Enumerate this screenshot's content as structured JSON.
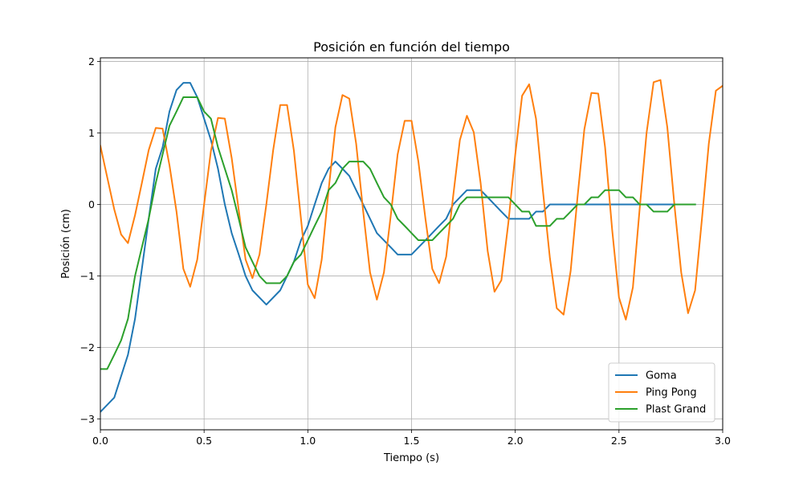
{
  "chart_data": {
    "type": "line",
    "title": "Posición en función del tiempo",
    "xlabel": "Tiempo (s)",
    "ylabel": "Posición (cm)",
    "xlim": [
      0,
      3
    ],
    "ylim": [
      -3.15,
      2.05
    ],
    "xticks": [
      0,
      0.5,
      1.0,
      1.5,
      2.0,
      2.5,
      3.0
    ],
    "xtick_labels": [
      "0.0",
      "0.5",
      "1.0",
      "1.5",
      "2.0",
      "2.5",
      "3.0"
    ],
    "yticks": [
      -3,
      -2,
      -1,
      0,
      1,
      2
    ],
    "ytick_labels": [
      "−3",
      "−2",
      "−1",
      "0",
      "1",
      "2"
    ],
    "grid": true,
    "legend_position": "lower-right",
    "series": [
      {
        "name": "Goma",
        "color": "#1f77b4",
        "points": [
          [
            0.0,
            -2.9
          ],
          [
            0.067,
            -2.7
          ],
          [
            0.133,
            -2.1
          ],
          [
            0.167,
            -1.6
          ],
          [
            0.2,
            -0.9
          ],
          [
            0.233,
            -0.2
          ],
          [
            0.267,
            0.5
          ],
          [
            0.3,
            0.8
          ],
          [
            0.333,
            1.3
          ],
          [
            0.367,
            1.6
          ],
          [
            0.4,
            1.7
          ],
          [
            0.433,
            1.7
          ],
          [
            0.467,
            1.5
          ],
          [
            0.5,
            1.2
          ],
          [
            0.533,
            0.9
          ],
          [
            0.567,
            0.5
          ],
          [
            0.6,
            0.0
          ],
          [
            0.633,
            -0.4
          ],
          [
            0.667,
            -0.7
          ],
          [
            0.7,
            -1.0
          ],
          [
            0.733,
            -1.2
          ],
          [
            0.8,
            -1.4
          ],
          [
            0.867,
            -1.2
          ],
          [
            0.9,
            -1.0
          ],
          [
            0.933,
            -0.8
          ],
          [
            0.967,
            -0.5
          ],
          [
            1.0,
            -0.3
          ],
          [
            1.033,
            0.0
          ],
          [
            1.067,
            0.3
          ],
          [
            1.1,
            0.5
          ],
          [
            1.133,
            0.6
          ],
          [
            1.167,
            0.5
          ],
          [
            1.2,
            0.4
          ],
          [
            1.233,
            0.2
          ],
          [
            1.267,
            0.0
          ],
          [
            1.3,
            -0.2
          ],
          [
            1.333,
            -0.4
          ],
          [
            1.4,
            -0.6
          ],
          [
            1.433,
            -0.7
          ],
          [
            1.5,
            -0.7
          ],
          [
            1.567,
            -0.5
          ],
          [
            1.633,
            -0.3
          ],
          [
            1.667,
            -0.2
          ],
          [
            1.7,
            0.0
          ],
          [
            1.767,
            0.2
          ],
          [
            1.833,
            0.2
          ],
          [
            1.867,
            0.1
          ],
          [
            1.933,
            -0.1
          ],
          [
            1.967,
            -0.2
          ],
          [
            2.067,
            -0.2
          ],
          [
            2.1,
            -0.1
          ],
          [
            2.133,
            -0.1
          ],
          [
            2.167,
            0.0
          ],
          [
            2.867,
            0.0
          ]
        ]
      },
      {
        "name": "Ping Pong",
        "color": "#ff7f0e",
        "points": [
          [
            0.0,
            0.82
          ],
          [
            0.033,
            0.38
          ],
          [
            0.067,
            -0.07
          ],
          [
            0.1,
            -0.42
          ],
          [
            0.133,
            -0.54
          ],
          [
            0.167,
            -0.15
          ],
          [
            0.2,
            0.3
          ],
          [
            0.233,
            0.76
          ],
          [
            0.267,
            1.07
          ],
          [
            0.3,
            1.06
          ],
          [
            0.333,
            0.55
          ],
          [
            0.367,
            -0.1
          ],
          [
            0.4,
            -0.9
          ],
          [
            0.433,
            -1.15
          ],
          [
            0.467,
            -0.77
          ],
          [
            0.5,
            0.0
          ],
          [
            0.533,
            0.75
          ],
          [
            0.567,
            1.21
          ],
          [
            0.6,
            1.2
          ],
          [
            0.633,
            0.65
          ],
          [
            0.667,
            -0.08
          ],
          [
            0.7,
            -0.77
          ],
          [
            0.733,
            -1.03
          ],
          [
            0.767,
            -0.7
          ],
          [
            0.8,
            0.0
          ],
          [
            0.833,
            0.76
          ],
          [
            0.867,
            1.39
          ],
          [
            0.9,
            1.39
          ],
          [
            0.933,
            0.75
          ],
          [
            0.967,
            -0.2
          ],
          [
            1.0,
            -1.12
          ],
          [
            1.033,
            -1.31
          ],
          [
            1.067,
            -0.77
          ],
          [
            1.1,
            0.2
          ],
          [
            1.133,
            1.08
          ],
          [
            1.167,
            1.53
          ],
          [
            1.2,
            1.48
          ],
          [
            1.233,
            0.85
          ],
          [
            1.267,
            -0.1
          ],
          [
            1.3,
            -0.95
          ],
          [
            1.333,
            -1.33
          ],
          [
            1.367,
            -0.95
          ],
          [
            1.4,
            -0.15
          ],
          [
            1.433,
            0.7
          ],
          [
            1.467,
            1.17
          ],
          [
            1.5,
            1.17
          ],
          [
            1.533,
            0.6
          ],
          [
            1.567,
            -0.2
          ],
          [
            1.6,
            -0.9
          ],
          [
            1.633,
            -1.1
          ],
          [
            1.667,
            -0.73
          ],
          [
            1.7,
            0.1
          ],
          [
            1.733,
            0.9
          ],
          [
            1.767,
            1.24
          ],
          [
            1.8,
            1.01
          ],
          [
            1.833,
            0.3
          ],
          [
            1.867,
            -0.65
          ],
          [
            1.9,
            -1.22
          ],
          [
            1.933,
            -1.06
          ],
          [
            1.967,
            -0.25
          ],
          [
            2.0,
            0.7
          ],
          [
            2.033,
            1.52
          ],
          [
            2.067,
            1.68
          ],
          [
            2.1,
            1.2
          ],
          [
            2.133,
            0.2
          ],
          [
            2.167,
            -0.75
          ],
          [
            2.2,
            -1.45
          ],
          [
            2.233,
            -1.54
          ],
          [
            2.267,
            -0.93
          ],
          [
            2.3,
            0.1
          ],
          [
            2.333,
            1.05
          ],
          [
            2.367,
            1.56
          ],
          [
            2.4,
            1.55
          ],
          [
            2.433,
            0.8
          ],
          [
            2.467,
            -0.35
          ],
          [
            2.5,
            -1.3
          ],
          [
            2.533,
            -1.61
          ],
          [
            2.567,
            -1.16
          ],
          [
            2.6,
            -0.05
          ],
          [
            2.633,
            1.0
          ],
          [
            2.667,
            1.71
          ],
          [
            2.7,
            1.74
          ],
          [
            2.733,
            1.08
          ],
          [
            2.767,
            0.0
          ],
          [
            2.8,
            -0.95
          ],
          [
            2.833,
            -1.52
          ],
          [
            2.867,
            -1.2
          ],
          [
            2.9,
            -0.2
          ],
          [
            2.933,
            0.85
          ],
          [
            2.967,
            1.59
          ],
          [
            3.0,
            1.66
          ]
        ]
      },
      {
        "name": "Plast Grand",
        "color": "#2ca02c",
        "points": [
          [
            0.0,
            -2.3
          ],
          [
            0.033,
            -2.3
          ],
          [
            0.067,
            -2.1
          ],
          [
            0.1,
            -1.9
          ],
          [
            0.133,
            -1.6
          ],
          [
            0.167,
            -1.0
          ],
          [
            0.2,
            -0.6
          ],
          [
            0.233,
            -0.2
          ],
          [
            0.267,
            0.3
          ],
          [
            0.3,
            0.7
          ],
          [
            0.333,
            1.1
          ],
          [
            0.367,
            1.3
          ],
          [
            0.4,
            1.5
          ],
          [
            0.433,
            1.5
          ],
          [
            0.467,
            1.5
          ],
          [
            0.5,
            1.3
          ],
          [
            0.533,
            1.2
          ],
          [
            0.567,
            0.8
          ],
          [
            0.6,
            0.5
          ],
          [
            0.633,
            0.2
          ],
          [
            0.667,
            -0.2
          ],
          [
            0.7,
            -0.6
          ],
          [
            0.733,
            -0.8
          ],
          [
            0.767,
            -1.0
          ],
          [
            0.8,
            -1.1
          ],
          [
            0.867,
            -1.1
          ],
          [
            0.9,
            -1.0
          ],
          [
            0.933,
            -0.8
          ],
          [
            0.967,
            -0.7
          ],
          [
            1.0,
            -0.5
          ],
          [
            1.033,
            -0.3
          ],
          [
            1.067,
            -0.1
          ],
          [
            1.1,
            0.2
          ],
          [
            1.133,
            0.3
          ],
          [
            1.167,
            0.5
          ],
          [
            1.2,
            0.6
          ],
          [
            1.267,
            0.6
          ],
          [
            1.3,
            0.5
          ],
          [
            1.333,
            0.3
          ],
          [
            1.367,
            0.1
          ],
          [
            1.4,
            0.0
          ],
          [
            1.433,
            -0.2
          ],
          [
            1.467,
            -0.3
          ],
          [
            1.5,
            -0.4
          ],
          [
            1.533,
            -0.5
          ],
          [
            1.6,
            -0.5
          ],
          [
            1.633,
            -0.4
          ],
          [
            1.667,
            -0.3
          ],
          [
            1.7,
            -0.2
          ],
          [
            1.733,
            0.0
          ],
          [
            1.767,
            0.1
          ],
          [
            1.967,
            0.1
          ],
          [
            2.0,
            0.0
          ],
          [
            2.033,
            -0.1
          ],
          [
            2.067,
            -0.1
          ],
          [
            2.1,
            -0.3
          ],
          [
            2.167,
            -0.3
          ],
          [
            2.2,
            -0.2
          ],
          [
            2.233,
            -0.2
          ],
          [
            2.267,
            -0.1
          ],
          [
            2.3,
            0.0
          ],
          [
            2.333,
            0.0
          ],
          [
            2.367,
            0.1
          ],
          [
            2.4,
            0.1
          ],
          [
            2.433,
            0.2
          ],
          [
            2.5,
            0.2
          ],
          [
            2.533,
            0.1
          ],
          [
            2.567,
            0.1
          ],
          [
            2.6,
            0.0
          ],
          [
            2.633,
            0.0
          ],
          [
            2.667,
            -0.1
          ],
          [
            2.733,
            -0.1
          ],
          [
            2.767,
            0.0
          ],
          [
            2.867,
            0.0
          ]
        ]
      }
    ]
  }
}
